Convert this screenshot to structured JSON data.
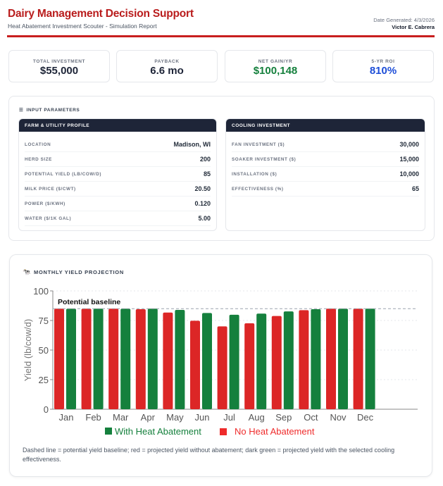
{
  "header": {
    "title": "Dairy Management Decision Support",
    "subtitle": "Heat Abatement Investment Scouter - Simulation Report",
    "date": "Date Generated: 4/3/2026",
    "author": "Victor E. Cabrera",
    "accent": "#c81e1e"
  },
  "kpis": [
    {
      "label": "TOTAL INVESTMENT",
      "value": "$55,000",
      "color": "#1e2538"
    },
    {
      "label": "PAYBACK",
      "value": "6.6 mo",
      "color": "#1e2538"
    },
    {
      "label": "NET GAIN/YR",
      "value": "$100,148",
      "color": "#15803d"
    },
    {
      "label": "5-YR ROI",
      "value": "810%",
      "color": "#1d4ed8"
    }
  ],
  "params": {
    "title": "INPUT PARAMETERS",
    "icon": "list-icon",
    "farm": {
      "title": "FARM & UTILITY PROFILE",
      "rows": [
        {
          "k": "LOCATION",
          "v": "Madison, WI"
        },
        {
          "k": "HERD SIZE",
          "v": "200"
        },
        {
          "k": "POTENTIAL YIELD (LB/COW/D)",
          "v": "85"
        },
        {
          "k": "MILK PRICE ($/CWT)",
          "v": "20.50"
        },
        {
          "k": "POWER ($/KWH)",
          "v": "0.120"
        },
        {
          "k": "WATER ($/1K GAL)",
          "v": "5.00"
        }
      ]
    },
    "cooling": {
      "title": "COOLING INVESTMENT",
      "rows": [
        {
          "k": "FAN INVESTMENT ($)",
          "v": "30,000"
        },
        {
          "k": "SOAKER INVESTMENT ($)",
          "v": "15,000"
        },
        {
          "k": "INSTALLATION ($)",
          "v": "10,000"
        },
        {
          "k": "EFFECTIVENESS (%)",
          "v": "65"
        }
      ]
    }
  },
  "chart_section": {
    "title": "MONTHLY YIELD PROJECTION",
    "icon": "cow-icon",
    "note": "Dashed line = potential yield baseline; red = projected yield without abatement; dark green = projected yield with the selected cooling effectiveness."
  },
  "chart_data": {
    "type": "bar",
    "ylabel": "Yield (lb/cow/d)",
    "ylim": [
      0,
      100
    ],
    "yticks": [
      "0",
      "25",
      "50",
      "75",
      "100"
    ],
    "categories": [
      "Jan",
      "Feb",
      "Mar",
      "Apr",
      "May",
      "Jun",
      "Jul",
      "Aug",
      "Sep",
      "Oct",
      "Nov",
      "Dec"
    ],
    "series": [
      {
        "name": "No Heat Abatement",
        "color": "#dc2626",
        "values": [
          85,
          85,
          85,
          84.5,
          81.7,
          74.8,
          70,
          72.6,
          78.8,
          83.7,
          85,
          85
        ]
      },
      {
        "name": "With Heat Abatement",
        "color": "#15803d",
        "values": [
          85,
          85,
          85,
          85,
          83.9,
          81.3,
          79.8,
          80.8,
          82.7,
          84.5,
          85,
          85
        ]
      }
    ],
    "baseline": {
      "label": "Potential baseline",
      "value": 85
    },
    "legend_position": "bottom",
    "grid": true,
    "legend": [
      {
        "label": "With Heat Abatement",
        "color": "#15803d"
      },
      {
        "label": "No Heat Abatement",
        "color": "#ef2b2b"
      }
    ]
  }
}
